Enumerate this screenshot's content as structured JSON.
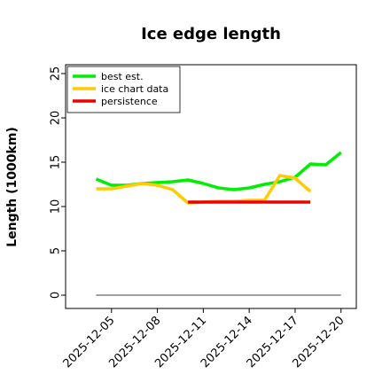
{
  "chart_data": {
    "type": "line",
    "title": "Ice edge length",
    "xlabel": "",
    "ylabel": "Length (1000km)",
    "ylim": [
      -1.5,
      26
    ],
    "xlim": [
      "2025-12-02",
      "2025-12-21"
    ],
    "yticks": [
      0,
      5,
      10,
      15,
      20,
      25
    ],
    "xticks": [
      "2025-12-05",
      "2025-12-08",
      "2025-12-11",
      "2025-12-14",
      "2025-12-17",
      "2025-12-20"
    ],
    "legend_position": "top-left",
    "grid": false,
    "series": [
      {
        "name": "best est.",
        "color": "#00ee00",
        "x": [
          "2025-12-04",
          "2025-12-05",
          "2025-12-06",
          "2025-12-07",
          "2025-12-08",
          "2025-12-09",
          "2025-12-10",
          "2025-12-11",
          "2025-12-12",
          "2025-12-13",
          "2025-12-14",
          "2025-12-15",
          "2025-12-16",
          "2025-12-17",
          "2025-12-18",
          "2025-12-19",
          "2025-12-20"
        ],
        "y": [
          13.1,
          12.4,
          12.4,
          12.6,
          12.7,
          12.8,
          13.0,
          12.6,
          12.1,
          11.9,
          12.1,
          12.5,
          12.8,
          13.3,
          14.8,
          14.7,
          16.1
        ]
      },
      {
        "name": "ice chart data",
        "color": "#ffcc00",
        "x": [
          "2025-12-04",
          "2025-12-05",
          "2025-12-06",
          "2025-12-07",
          "2025-12-08",
          "2025-12-09",
          "2025-12-10",
          "2025-12-11",
          "2025-12-12",
          "2025-12-13",
          "2025-12-14",
          "2025-12-15",
          "2025-12-16",
          "2025-12-17",
          "2025-12-18"
        ],
        "y": [
          12.0,
          12.0,
          12.3,
          12.6,
          12.4,
          11.9,
          10.4,
          10.5,
          10.6,
          10.6,
          10.7,
          10.7,
          13.5,
          13.2,
          11.7
        ]
      },
      {
        "name": "persistence",
        "color": "#ee0000",
        "x": [
          "2025-12-10",
          "2025-12-18"
        ],
        "y": [
          10.5,
          10.5
        ]
      },
      {
        "name": "",
        "color": "#808080",
        "x": [
          "2025-12-04",
          "2025-12-20"
        ],
        "y": [
          0,
          0
        ]
      }
    ]
  }
}
